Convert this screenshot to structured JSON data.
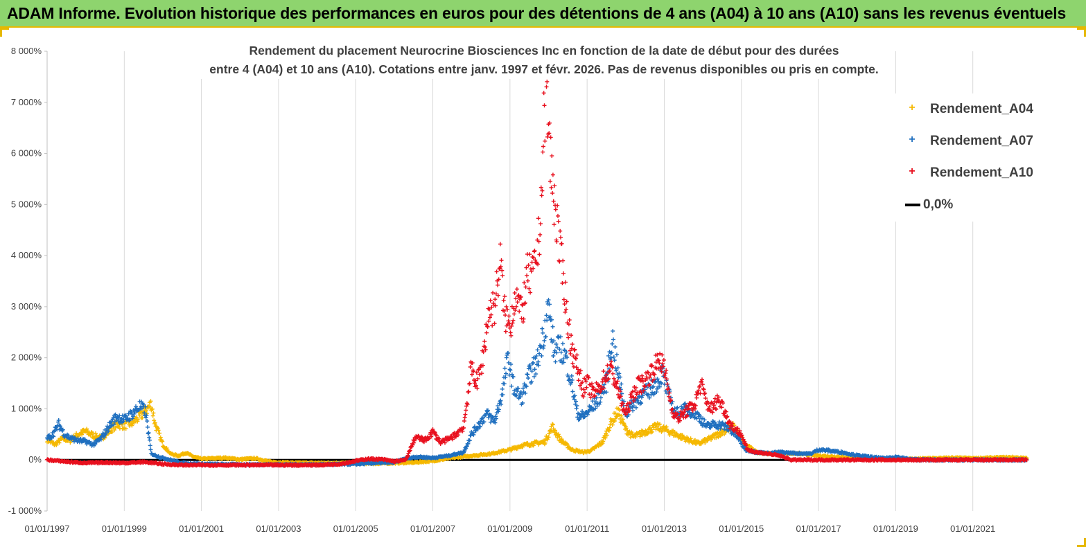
{
  "header": {
    "title": "ADAM Informe. Evolution historique des performances en euros pour des détentions de 4 ans (A04) à 10 ans (A10) sans les revenus éventuels"
  },
  "colors": {
    "header_bg": "#8ed46e",
    "a04": "#f5b800",
    "a07": "#1f6fbf",
    "a10": "#e8101e",
    "zero": "#000000"
  },
  "chart_data": {
    "type": "scatter",
    "subtitle_line1": "Rendement du placement Neurocrine Biosciences Inc en fonction de la date de début pour des durées",
    "subtitle_line2": "entre 4 (A04) et 10 ans (A10).  Cotations entre janv. 1997 et févr. 2026.  Pas de revenus disponibles ou pris en compte.",
    "x_range": [
      "1997-01-01",
      "2023-01-01"
    ],
    "y_range": [
      -1000,
      8000
    ],
    "y_ticks": [
      {
        "value": -1000,
        "label": "-1 000%"
      },
      {
        "value": 0,
        "label": "0%"
      },
      {
        "value": 1000,
        "label": "1 000%"
      },
      {
        "value": 2000,
        "label": "2 000%"
      },
      {
        "value": 3000,
        "label": "3 000%"
      },
      {
        "value": 4000,
        "label": "4 000%"
      },
      {
        "value": 5000,
        "label": "5 000%"
      },
      {
        "value": 6000,
        "label": "6 000%"
      },
      {
        "value": 7000,
        "label": "7 000%"
      },
      {
        "value": 8000,
        "label": "8 000%"
      }
    ],
    "x_ticks": [
      {
        "value": 1997,
        "label": "01/01/1997"
      },
      {
        "value": 1999,
        "label": "01/01/1999"
      },
      {
        "value": 2001,
        "label": "01/01/2001"
      },
      {
        "value": 2003,
        "label": "01/01/2003"
      },
      {
        "value": 2005,
        "label": "01/01/2005"
      },
      {
        "value": 2007,
        "label": "01/01/2007"
      },
      {
        "value": 2009,
        "label": "01/01/2009"
      },
      {
        "value": 2011,
        "label": "01/01/2011"
      },
      {
        "value": 2013,
        "label": "01/01/2013"
      },
      {
        "value": 2015,
        "label": "01/01/2015"
      },
      {
        "value": 2017,
        "label": "01/01/2017"
      },
      {
        "value": 2019,
        "label": "01/01/2019"
      },
      {
        "value": 2021,
        "label": "01/01/2021"
      }
    ],
    "grid": "vertical",
    "legend_position": "top-right",
    "series": [
      {
        "key": "a04",
        "name": "Rendement_A04",
        "marker": "+",
        "points": [
          [
            1997.0,
            400
          ],
          [
            1997.2,
            300
          ],
          [
            1997.4,
            420
          ],
          [
            1997.6,
            380
          ],
          [
            1997.8,
            500
          ],
          [
            1998.0,
            560
          ],
          [
            1998.2,
            480
          ],
          [
            1998.4,
            420
          ],
          [
            1998.6,
            560
          ],
          [
            1998.8,
            700
          ],
          [
            1999.0,
            680
          ],
          [
            1999.2,
            720
          ],
          [
            1999.4,
            850
          ],
          [
            1999.6,
            1000
          ],
          [
            1999.7,
            1100
          ],
          [
            1999.8,
            700
          ],
          [
            2000.0,
            300
          ],
          [
            2000.2,
            120
          ],
          [
            2000.4,
            80
          ],
          [
            2000.6,
            140
          ],
          [
            2000.8,
            60
          ],
          [
            2001.0,
            20
          ],
          [
            2001.3,
            30
          ],
          [
            2001.6,
            40
          ],
          [
            2002.0,
            10
          ],
          [
            2002.4,
            30
          ],
          [
            2002.8,
            -40
          ],
          [
            2003.5,
            -60
          ],
          [
            2004.5,
            -60
          ],
          [
            2005.5,
            -70
          ],
          [
            2006.5,
            -50
          ],
          [
            2007.0,
            -20
          ],
          [
            2007.5,
            40
          ],
          [
            2008.0,
            80
          ],
          [
            2008.5,
            120
          ],
          [
            2009.0,
            200
          ],
          [
            2009.3,
            280
          ],
          [
            2009.6,
            320
          ],
          [
            2009.9,
            350
          ],
          [
            2010.1,
            650
          ],
          [
            2010.3,
            400
          ],
          [
            2010.6,
            200
          ],
          [
            2010.9,
            150
          ],
          [
            2011.1,
            180
          ],
          [
            2011.4,
            350
          ],
          [
            2011.6,
            700
          ],
          [
            2011.8,
            950
          ],
          [
            2012.0,
            600
          ],
          [
            2012.2,
            450
          ],
          [
            2012.5,
            550
          ],
          [
            2012.8,
            650
          ],
          [
            2013.0,
            600
          ],
          [
            2013.3,
            500
          ],
          [
            2013.6,
            400
          ],
          [
            2013.9,
            320
          ],
          [
            2014.2,
            420
          ],
          [
            2014.5,
            550
          ],
          [
            2014.8,
            650
          ],
          [
            2015.1,
            300
          ],
          [
            2015.4,
            150
          ],
          [
            2015.7,
            120
          ],
          [
            2016.0,
            140
          ],
          [
            2016.5,
            120
          ],
          [
            2017.0,
            80
          ],
          [
            2017.5,
            60
          ],
          [
            2018.0,
            40
          ],
          [
            2018.5,
            20
          ],
          [
            2019.0,
            10
          ],
          [
            2019.5,
            20
          ],
          [
            2020.0,
            30
          ],
          [
            2020.5,
            40
          ],
          [
            2021.0,
            30
          ],
          [
            2021.5,
            40
          ],
          [
            2022.0,
            50
          ],
          [
            2022.4,
            30
          ]
        ]
      },
      {
        "key": "a07",
        "name": "Rendement_A07",
        "marker": "+",
        "points": [
          [
            1997.0,
            420
          ],
          [
            1997.15,
            500
          ],
          [
            1997.3,
            700
          ],
          [
            1997.45,
            500
          ],
          [
            1997.6,
            430
          ],
          [
            1997.8,
            380
          ],
          [
            1998.0,
            360
          ],
          [
            1998.2,
            300
          ],
          [
            1998.4,
            420
          ],
          [
            1998.6,
            650
          ],
          [
            1998.8,
            850
          ],
          [
            1999.0,
            780
          ],
          [
            1999.2,
            900
          ],
          [
            1999.4,
            1050
          ],
          [
            1999.55,
            950
          ],
          [
            1999.7,
            120
          ],
          [
            1999.9,
            60
          ],
          [
            2000.1,
            20
          ],
          [
            2000.5,
            -60
          ],
          [
            2001.0,
            -80
          ],
          [
            2002.0,
            -90
          ],
          [
            2003.0,
            -90
          ],
          [
            2004.0,
            -90
          ],
          [
            2005.0,
            -80
          ],
          [
            2005.5,
            -60
          ],
          [
            2006.0,
            -50
          ],
          [
            2006.3,
            30
          ],
          [
            2006.6,
            60
          ],
          [
            2007.0,
            40
          ],
          [
            2007.4,
            80
          ],
          [
            2007.8,
            150
          ],
          [
            2008.0,
            500
          ],
          [
            2008.2,
            700
          ],
          [
            2008.4,
            900
          ],
          [
            2008.6,
            750
          ],
          [
            2008.8,
            1300
          ],
          [
            2008.95,
            2000
          ],
          [
            2009.1,
            1400
          ],
          [
            2009.3,
            1200
          ],
          [
            2009.5,
            1650
          ],
          [
            2009.7,
            1900
          ],
          [
            2009.85,
            2400
          ],
          [
            2010.0,
            3000
          ],
          [
            2010.15,
            2100
          ],
          [
            2010.3,
            2200
          ],
          [
            2010.45,
            2000
          ],
          [
            2010.6,
            1500
          ],
          [
            2010.75,
            900
          ],
          [
            2010.9,
            850
          ],
          [
            2011.1,
            1000
          ],
          [
            2011.3,
            1200
          ],
          [
            2011.5,
            1500
          ],
          [
            2011.65,
            2400
          ],
          [
            2011.8,
            1700
          ],
          [
            2012.0,
            900
          ],
          [
            2012.2,
            1100
          ],
          [
            2012.4,
            1250
          ],
          [
            2012.6,
            1350
          ],
          [
            2012.8,
            1500
          ],
          [
            2012.95,
            1700
          ],
          [
            2013.1,
            1300
          ],
          [
            2013.3,
            900
          ],
          [
            2013.5,
            1000
          ],
          [
            2013.7,
            950
          ],
          [
            2013.9,
            850
          ],
          [
            2014.1,
            650
          ],
          [
            2014.3,
            700
          ],
          [
            2014.5,
            680
          ],
          [
            2014.7,
            600
          ],
          [
            2014.9,
            450
          ],
          [
            2015.1,
            200
          ],
          [
            2015.4,
            150
          ],
          [
            2015.7,
            130
          ],
          [
            2016.0,
            150
          ],
          [
            2016.4,
            130
          ],
          [
            2016.8,
            120
          ],
          [
            2017.0,
            200
          ],
          [
            2017.3,
            180
          ],
          [
            2017.6,
            150
          ],
          [
            2017.9,
            100
          ],
          [
            2018.3,
            60
          ],
          [
            2018.7,
            30
          ],
          [
            2019.0,
            60
          ],
          [
            2019.4,
            10
          ],
          [
            2020.0,
            0
          ],
          [
            2021.0,
            0
          ],
          [
            2022.0,
            0
          ],
          [
            2022.4,
            0
          ]
        ]
      },
      {
        "key": "a10",
        "name": "Rendement_A10",
        "marker": "+",
        "points": [
          [
            1997.0,
            0
          ],
          [
            1997.3,
            -20
          ],
          [
            1997.6,
            -40
          ],
          [
            1998.0,
            -60
          ],
          [
            1998.5,
            -50
          ],
          [
            1999.0,
            -60
          ],
          [
            1999.5,
            -40
          ],
          [
            2000.0,
            -80
          ],
          [
            2000.5,
            -100
          ],
          [
            2001.0,
            -100
          ],
          [
            2002.0,
            -100
          ],
          [
            2003.0,
            -100
          ],
          [
            2004.0,
            -100
          ],
          [
            2004.6,
            -80
          ],
          [
            2005.0,
            -20
          ],
          [
            2005.3,
            20
          ],
          [
            2005.7,
            10
          ],
          [
            2006.0,
            -30
          ],
          [
            2006.3,
            0
          ],
          [
            2006.55,
            450
          ],
          [
            2006.8,
            380
          ],
          [
            2007.0,
            550
          ],
          [
            2007.2,
            350
          ],
          [
            2007.4,
            400
          ],
          [
            2007.6,
            500
          ],
          [
            2007.8,
            650
          ],
          [
            2008.0,
            1800
          ],
          [
            2008.15,
            1500
          ],
          [
            2008.3,
            2000
          ],
          [
            2008.45,
            2900
          ],
          [
            2008.6,
            3000
          ],
          [
            2008.75,
            3900
          ],
          [
            2008.85,
            2900
          ],
          [
            2009.0,
            2600
          ],
          [
            2009.15,
            3300
          ],
          [
            2009.3,
            2800
          ],
          [
            2009.45,
            3600
          ],
          [
            2009.6,
            3600
          ],
          [
            2009.75,
            4300
          ],
          [
            2009.85,
            5800
          ],
          [
            2009.92,
            7400
          ],
          [
            2010.0,
            6400
          ],
          [
            2010.1,
            5400
          ],
          [
            2010.2,
            4800
          ],
          [
            2010.3,
            4000
          ],
          [
            2010.4,
            3500
          ],
          [
            2010.5,
            2700
          ],
          [
            2010.6,
            2200
          ],
          [
            2010.75,
            1800
          ],
          [
            2010.9,
            1400
          ],
          [
            2011.0,
            1500
          ],
          [
            2011.15,
            1300
          ],
          [
            2011.3,
            1400
          ],
          [
            2011.45,
            1600
          ],
          [
            2011.6,
            1800
          ],
          [
            2011.75,
            1500
          ],
          [
            2011.9,
            1100
          ],
          [
            2012.0,
            900
          ],
          [
            2012.15,
            1200
          ],
          [
            2012.3,
            1450
          ],
          [
            2012.45,
            1500
          ],
          [
            2012.6,
            1650
          ],
          [
            2012.75,
            1800
          ],
          [
            2012.9,
            2000
          ],
          [
            2013.05,
            1600
          ],
          [
            2013.2,
            1000
          ],
          [
            2013.35,
            800
          ],
          [
            2013.5,
            900
          ],
          [
            2013.65,
            1000
          ],
          [
            2013.8,
            1100
          ],
          [
            2013.95,
            1500
          ],
          [
            2014.1,
            1100
          ],
          [
            2014.25,
            1000
          ],
          [
            2014.4,
            1200
          ],
          [
            2014.55,
            1000
          ],
          [
            2014.7,
            700
          ],
          [
            2014.85,
            600
          ],
          [
            2015.0,
            500
          ],
          [
            2015.15,
            200
          ],
          [
            2015.4,
            150
          ],
          [
            2015.7,
            120
          ],
          [
            2016.0,
            80
          ],
          [
            2016.3,
            0
          ],
          [
            2017.0,
            0
          ],
          [
            2018.0,
            0
          ],
          [
            2019.0,
            0
          ],
          [
            2020.0,
            0
          ],
          [
            2021.0,
            0
          ],
          [
            2022.0,
            0
          ],
          [
            2022.4,
            0
          ]
        ]
      },
      {
        "key": "zero",
        "name": "0,0%",
        "marker": "line",
        "points": [
          [
            1997.0,
            0
          ],
          [
            2022.4,
            0
          ]
        ]
      }
    ]
  }
}
